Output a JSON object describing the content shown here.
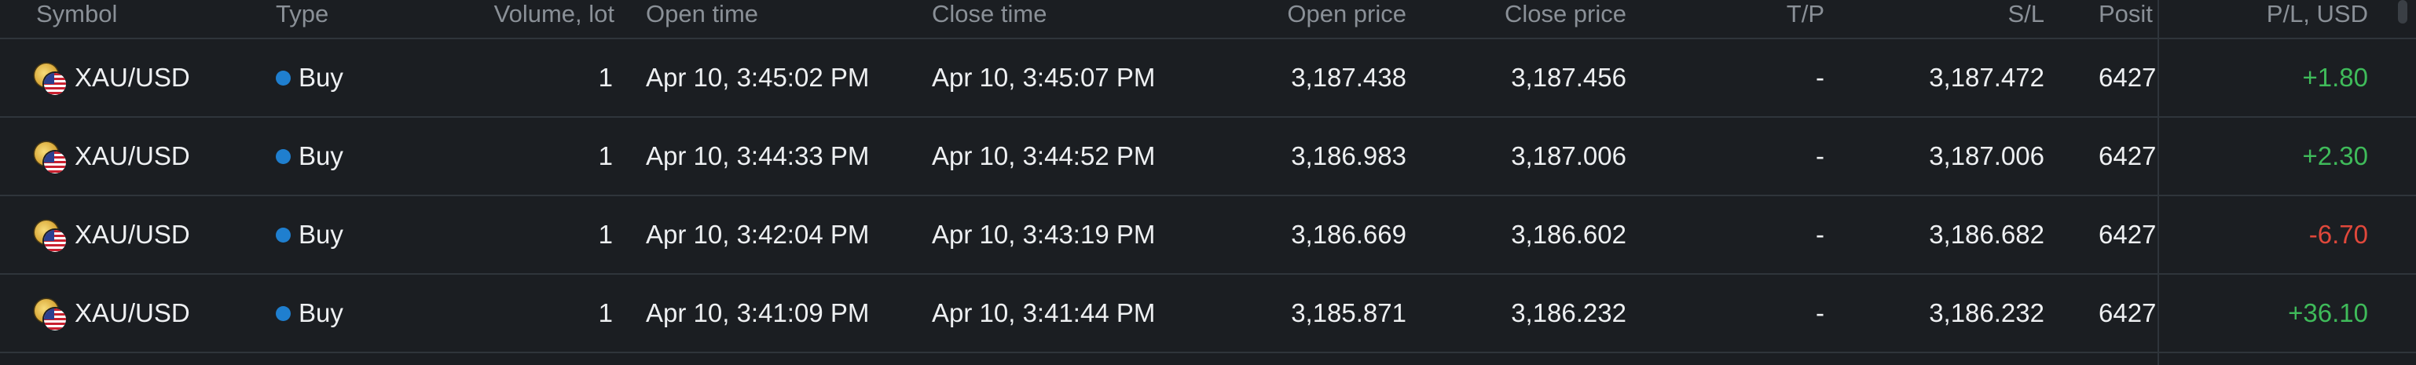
{
  "columns": {
    "symbol": "Symbol",
    "type": "Type",
    "volume": "Volume, lot",
    "open_time": "Open time",
    "close_time": "Close time",
    "open_price": "Open price",
    "close_price": "Close price",
    "tp": "T/P",
    "sl": "S/L",
    "position": "Posit",
    "pl": "P/L, USD"
  },
  "rows": [
    {
      "symbol": "XAU/USD",
      "type": "Buy",
      "volume": "1",
      "open_time": "Apr 10, 3:45:02 PM",
      "close_time": "Apr 10, 3:45:07 PM",
      "open_price": "3,187.438",
      "close_price": "3,187.456",
      "tp": "-",
      "sl": "3,187.472",
      "position": "6427",
      "pl": "+1.80"
    },
    {
      "symbol": "XAU/USD",
      "type": "Buy",
      "volume": "1",
      "open_time": "Apr 10, 3:44:33 PM",
      "close_time": "Apr 10, 3:44:52 PM",
      "open_price": "3,186.983",
      "close_price": "3,187.006",
      "tp": "-",
      "sl": "3,187.006",
      "position": "6427",
      "pl": "+2.30"
    },
    {
      "symbol": "XAU/USD",
      "type": "Buy",
      "volume": "1",
      "open_time": "Apr 10, 3:42:04 PM",
      "close_time": "Apr 10, 3:43:19 PM",
      "open_price": "3,186.669",
      "close_price": "3,186.602",
      "tp": "-",
      "sl": "3,186.682",
      "position": "6427",
      "pl": "-6.70"
    },
    {
      "symbol": "XAU/USD",
      "type": "Buy",
      "volume": "1",
      "open_time": "Apr 10, 3:41:09 PM",
      "close_time": "Apr 10, 3:41:44 PM",
      "open_price": "3,185.871",
      "close_price": "3,186.232",
      "tp": "-",
      "sl": "3,186.232",
      "position": "6427",
      "pl": "+36.10"
    }
  ],
  "colors": {
    "background": "#1b1e22",
    "positive": "#3fbb5a",
    "negative": "#e0483b",
    "buy_dot": "#1f7fcf",
    "header_text": "#8a9097"
  },
  "icons": {
    "symbol": "gold-usd-flag-icon",
    "type": "buy-dot-icon"
  }
}
